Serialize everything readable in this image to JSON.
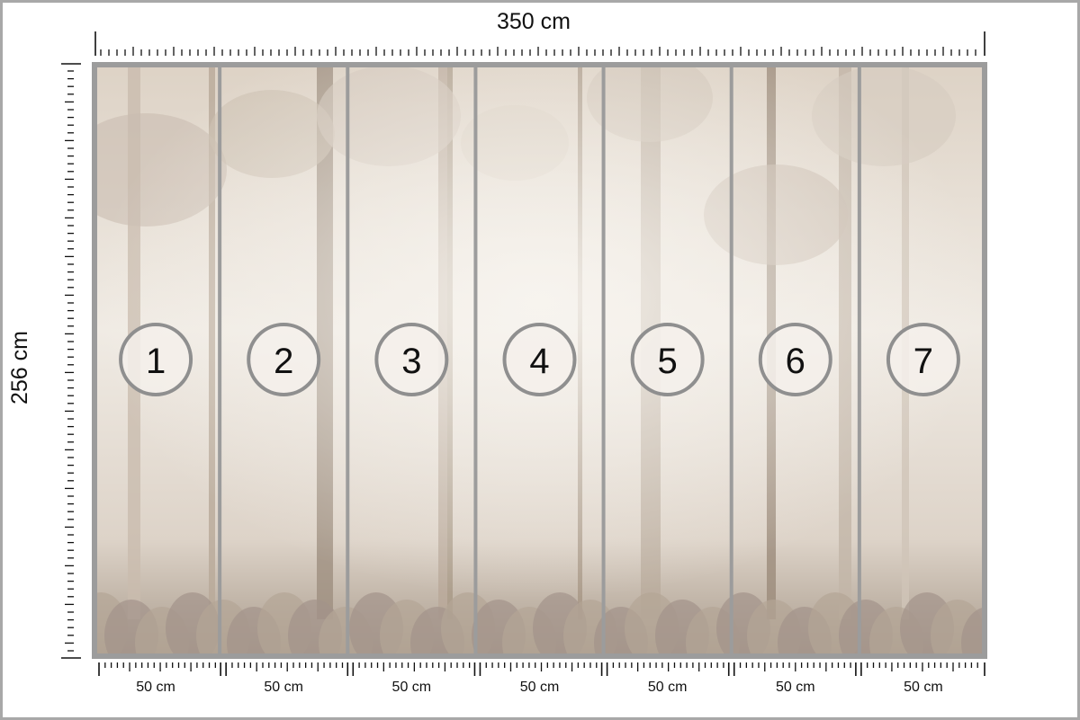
{
  "dimensions": {
    "width_label": "350 cm",
    "height_label": "256 cm"
  },
  "panels": [
    {
      "number": "1",
      "width_label": "50 cm"
    },
    {
      "number": "2",
      "width_label": "50 cm"
    },
    {
      "number": "3",
      "width_label": "50 cm"
    },
    {
      "number": "4",
      "width_label": "50 cm"
    },
    {
      "number": "5",
      "width_label": "50 cm"
    },
    {
      "number": "6",
      "width_label": "50 cm"
    },
    {
      "number": "7",
      "width_label": "50 cm"
    }
  ],
  "colors": {
    "frame": "#9c9c9c",
    "mural_light": "#efe8df",
    "mural_dark": "#a39586",
    "circle_stroke": "#8f8f8f"
  }
}
